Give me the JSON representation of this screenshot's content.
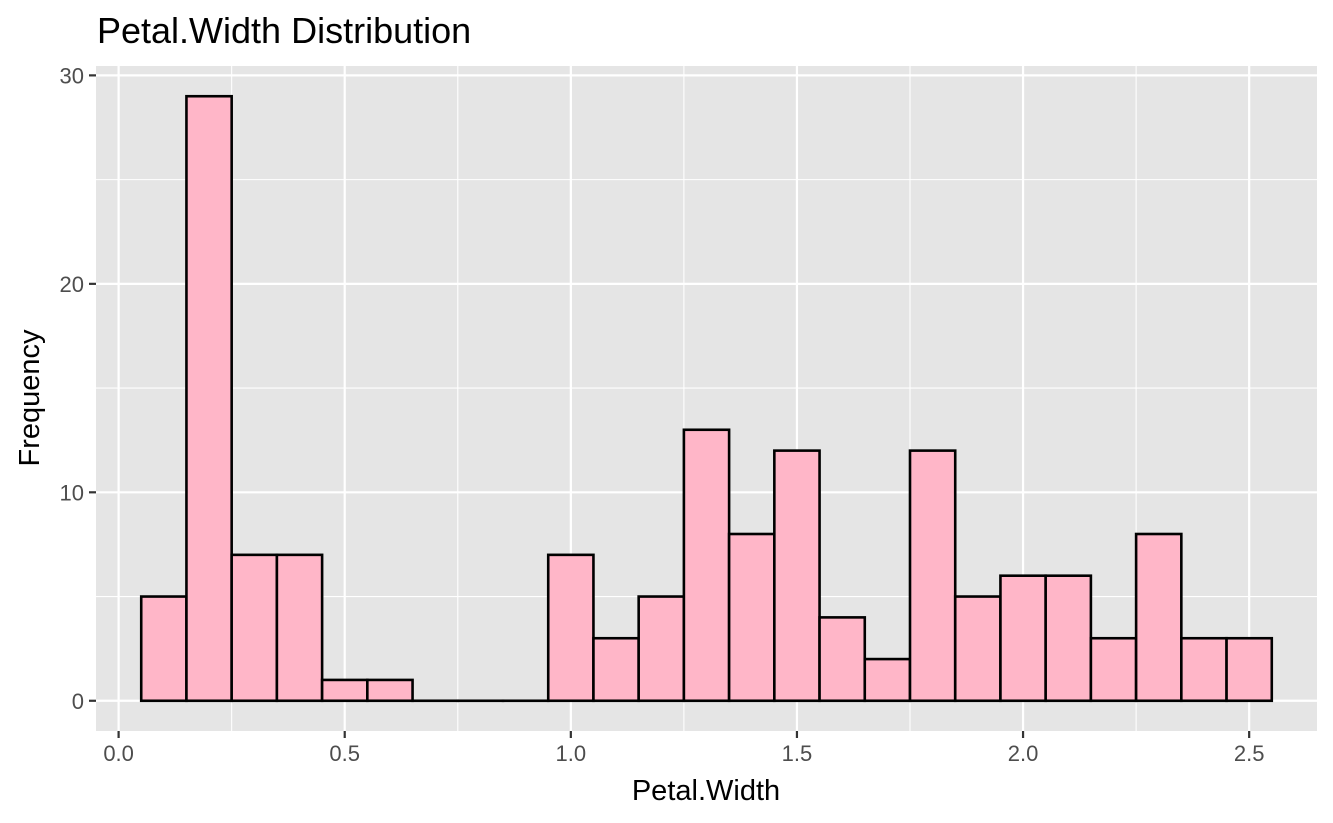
{
  "chart_data": {
    "type": "bar",
    "title": "Petal.Width Distribution",
    "xlabel": "Petal.Width",
    "ylabel": "Frequency",
    "x": [
      0.1,
      0.2,
      0.3,
      0.4,
      0.5,
      0.6,
      0.7,
      0.8,
      0.9,
      1.0,
      1.1,
      1.2,
      1.3,
      1.4,
      1.5,
      1.6,
      1.7,
      1.8,
      1.9,
      2.0,
      2.1,
      2.2,
      2.3,
      2.4,
      2.5
    ],
    "values": [
      5,
      29,
      7,
      7,
      1,
      1,
      0,
      0,
      0,
      7,
      3,
      5,
      13,
      8,
      12,
      4,
      2,
      12,
      5,
      6,
      6,
      3,
      8,
      3,
      3
    ],
    "binwidth": 0.1,
    "xlim": [
      -0.05,
      2.65
    ],
    "ylim": [
      -1.45,
      30.45
    ],
    "xticks": [
      0.0,
      0.5,
      1.0,
      1.5,
      2.0,
      2.5
    ],
    "xtick_labels": [
      "0.0",
      "0.5",
      "1.0",
      "1.5",
      "2.0",
      "2.5"
    ],
    "yticks": [
      0,
      10,
      20,
      30
    ],
    "ytick_labels": [
      "0",
      "10",
      "20",
      "30"
    ],
    "grid": true,
    "colors": {
      "bar_fill": "#FFB6C8",
      "bar_stroke": "#000000",
      "panel_background": "#E5E5E5",
      "grid": "#FFFFFF",
      "tick_text": "#4D4D4D"
    }
  }
}
